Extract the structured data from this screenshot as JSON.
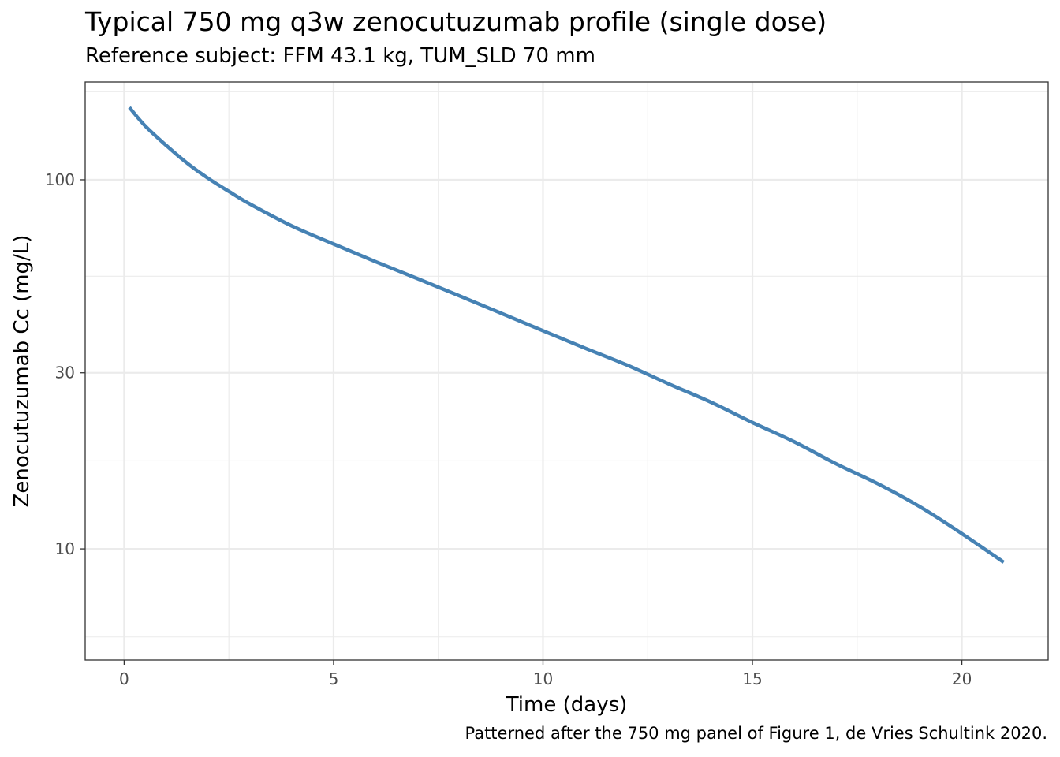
{
  "title": "Typical 750 mg q3w zenocutuzumab profile (single dose)",
  "subtitle": "Reference subject: FFM 43.1 kg, TUM_SLD 70 mm",
  "caption": "Patterned after the 750 mg panel of Figure 1, de Vries Schultink 2020.",
  "chart_data": {
    "type": "line",
    "xlabel": "Time (days)",
    "ylabel": "Zenocutuzumab Cc (mg/L)",
    "x_scale": "linear",
    "y_scale": "log10",
    "xlim": [
      -0.93,
      22.06
    ],
    "ylim": [
      5.0,
      184
    ],
    "x_ticks": [
      0,
      5,
      10,
      15,
      20
    ],
    "x_tick_labels": [
      "0",
      "5",
      "10",
      "15",
      "20"
    ],
    "y_ticks": [
      10,
      30,
      100
    ],
    "y_tick_labels": [
      "10",
      "30",
      "100"
    ],
    "grid": true,
    "line_color": "#4682B4",
    "series": [
      {
        "x": [
          0.125,
          0.5,
          1,
          1.5,
          2,
          2.5,
          3,
          4,
          5,
          6,
          7,
          8,
          9,
          10,
          11,
          12,
          13,
          14,
          15,
          16,
          17,
          18,
          19,
          20,
          21
        ],
        "y": [
          157,
          140,
          124,
          111,
          101,
          93,
          86,
          75,
          67,
          60,
          54,
          48.5,
          43.5,
          39,
          35,
          31.5,
          28,
          25,
          22,
          19.5,
          17,
          15,
          13,
          11,
          9.2
        ]
      }
    ]
  }
}
